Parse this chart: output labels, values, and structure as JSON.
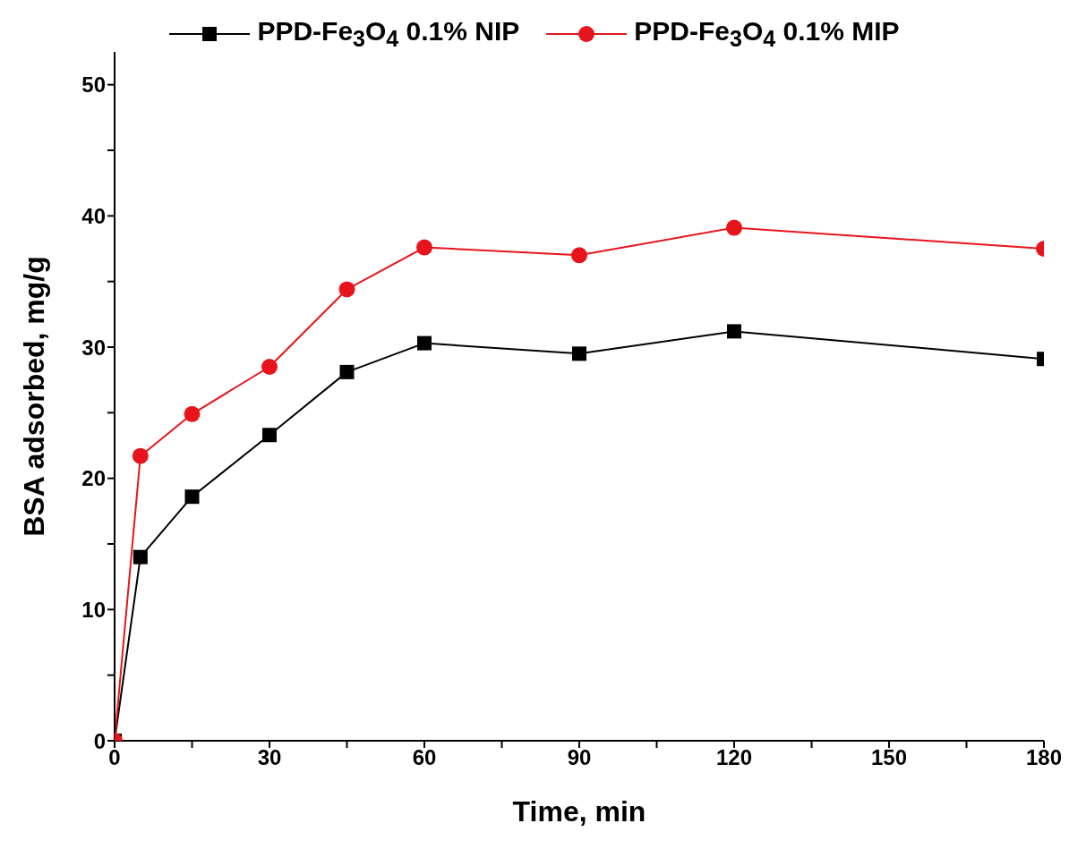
{
  "chart_data": {
    "type": "line",
    "xlabel": "Time, min",
    "ylabel": "BSA adsorbed, mg/g",
    "x": [
      0,
      5,
      15,
      30,
      45,
      60,
      90,
      120,
      180
    ],
    "series": [
      {
        "name": "PPD-Fe$_{3}$O$_{4}$ 0.1% NIP",
        "color": "#000000",
        "marker": "square",
        "values": [
          0,
          14.0,
          18.6,
          23.3,
          28.1,
          30.3,
          29.5,
          31.2,
          29.1
        ]
      },
      {
        "name": "PPD-Fe$_{3}$O$_{4}$ 0.1% MIP",
        "color": "#e8141b",
        "marker": "circle",
        "values": [
          0,
          21.7,
          24.9,
          28.5,
          34.4,
          37.6,
          37.0,
          39.1,
          37.5
        ]
      }
    ],
    "xlim": [
      0,
      180
    ],
    "ylim": [
      0,
      52.5
    ],
    "xticks": [
      0,
      {
        "value": 15,
        "label": null
      },
      30,
      {
        "value": 45,
        "label": null
      },
      60,
      {
        "value": 75,
        "label": null
      },
      90,
      {
        "value": 105,
        "label": null
      },
      120,
      {
        "value": 135,
        "label": null
      },
      150,
      {
        "value": 165,
        "label": null
      },
      180
    ],
    "yticks": [
      0,
      {
        "value": 5,
        "label": null
      },
      10,
      {
        "value": 15,
        "label": null
      },
      20,
      {
        "value": 25,
        "label": null
      },
      30,
      {
        "value": 35,
        "label": null
      },
      40,
      {
        "value": 45,
        "label": null
      },
      50
    ],
    "legend": "top",
    "grid": false
  }
}
